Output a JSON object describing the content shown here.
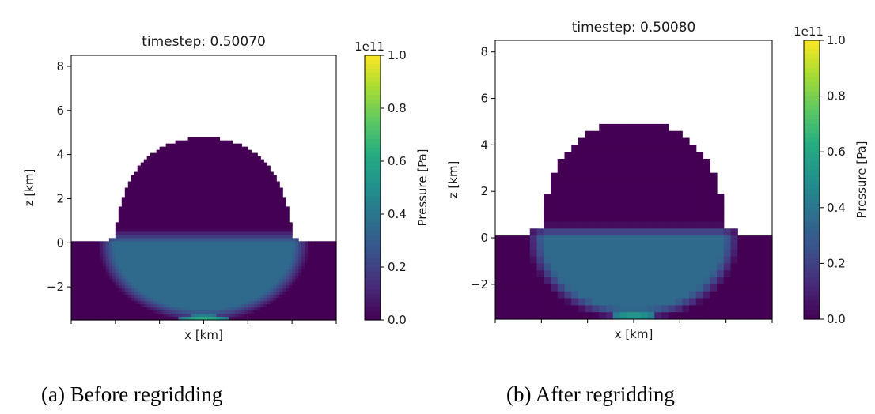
{
  "captions": {
    "left": "(a)  Before regridding",
    "right": "(b) After regridding"
  },
  "chart_data": [
    {
      "type": "heatmap",
      "title": "timestep: 0.50070",
      "xlabel": "x [km]",
      "ylabel": "z [km]",
      "xlim": [
        -6,
        6
      ],
      "ylim": [
        -3.5,
        8.5
      ],
      "yticks": [
        -2,
        0,
        2,
        4,
        6,
        8
      ],
      "ytick_labels": [
        "−2",
        "0",
        "2",
        "4",
        "6",
        "8"
      ],
      "xticks": [
        -6,
        -4,
        -2,
        0,
        2,
        4,
        6
      ],
      "crater_profile": {
        "dome_top_z": 4.75,
        "dome_half_width": 4.0,
        "surface_z": 0.1,
        "rim_z": 0.25,
        "rim_x": 4.25
      },
      "pressure_zone": {
        "center_z": 0.0,
        "half_width": 4.8,
        "depth": 3.6,
        "peak_pressure": 35000000000.0,
        "hotspot_pressure": 65000000000.0
      },
      "colorbar": {
        "label": "Pressure [Pa]",
        "multiplier": "1e11",
        "range": [
          0.0,
          1.0
        ],
        "ticks": [
          "0.0",
          "0.2",
          "0.4",
          "0.6",
          "0.8",
          "1.0"
        ],
        "colormap": "viridis"
      }
    },
    {
      "type": "heatmap",
      "title": "timestep: 0.50080",
      "xlabel": "x [km]",
      "ylabel": "z [km]",
      "xlim": [
        -6,
        6
      ],
      "ylim": [
        -3.5,
        8.5
      ],
      "yticks": [
        -2,
        0,
        2,
        4,
        6,
        8
      ],
      "ytick_labels": [
        "−2",
        "0",
        "2",
        "4",
        "6",
        "8"
      ],
      "xticks": [
        -6,
        -4,
        -2,
        0,
        2,
        4,
        6
      ],
      "crater_profile": {
        "dome_top_z": 5.0,
        "dome_half_width": 4.0,
        "surface_z": 0.2,
        "rim_z": 0.4,
        "rim_x": 4.6
      },
      "pressure_zone": {
        "center_z": 0.0,
        "half_width": 4.6,
        "depth": 3.6,
        "peak_pressure": 35000000000.0,
        "hotspot_pressure": 65000000000.0
      },
      "colorbar": {
        "label": "Pressure [Pa]",
        "multiplier": "1e11",
        "range": [
          0.0,
          1.0
        ],
        "ticks": [
          "0.0",
          "0.2",
          "0.4",
          "0.6",
          "0.8",
          "1.0"
        ],
        "colormap": "viridis"
      }
    }
  ]
}
